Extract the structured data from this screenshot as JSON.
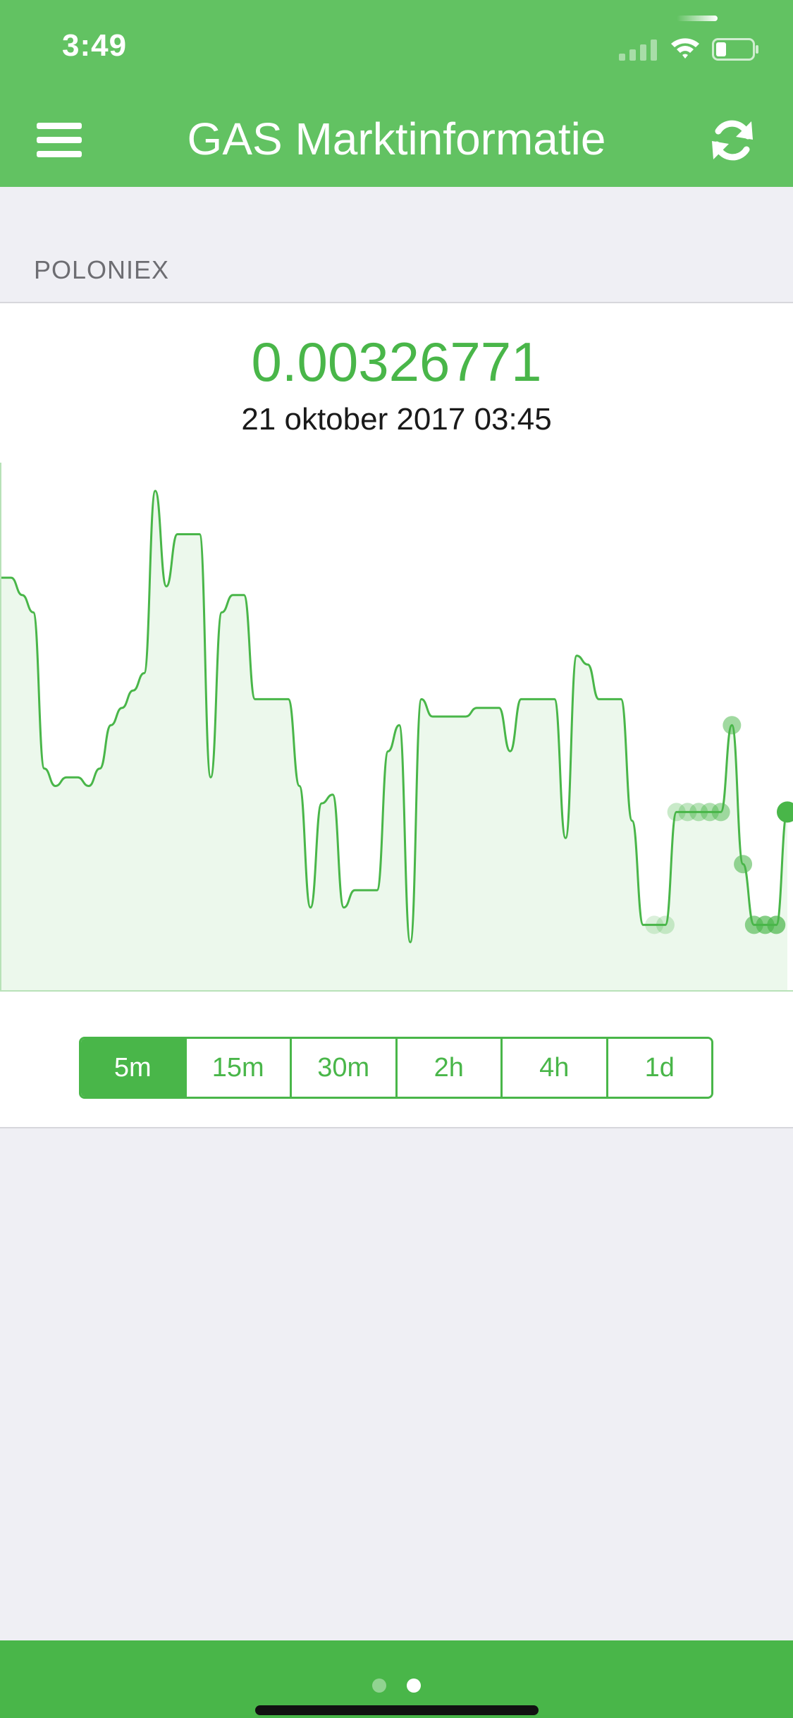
{
  "status": {
    "time": "3:49"
  },
  "nav": {
    "title": "GAS Marktinformatie",
    "menu_icon": "hamburger-menu-icon",
    "refresh_icon": "refresh-icon"
  },
  "section": {
    "label": "POLONIEX"
  },
  "price": {
    "value": "0.00326771",
    "timestamp": "21 oktober 2017 03:45"
  },
  "colors": {
    "accent": "#62c262",
    "accent_dark": "#49b649",
    "background": "#efeff4"
  },
  "chart_data": {
    "type": "area",
    "series": [
      {
        "values": [
          0.00342,
          0.00342,
          0.0034,
          0.00338,
          0.0032,
          0.00318,
          0.00319,
          0.00319,
          0.00318,
          0.0032,
          0.00325,
          0.00327,
          0.00329,
          0.00331,
          0.00352,
          0.00341,
          0.00347,
          0.00347,
          0.00347,
          0.00319,
          0.00338,
          0.0034,
          0.0034,
          0.00328,
          0.00328,
          0.00328,
          0.00328,
          0.00318,
          0.00304,
          0.00316,
          0.00317,
          0.00304,
          0.00306,
          0.00306,
          0.00306,
          0.00322,
          0.00325,
          0.003,
          0.00328,
          0.00326,
          0.00326,
          0.00326,
          0.00326,
          0.00327,
          0.00327,
          0.00327,
          0.00322,
          0.00328,
          0.00328,
          0.00328,
          0.00328,
          0.00312,
          0.00333,
          0.00332,
          0.00328,
          0.00328,
          0.00328,
          0.00314,
          0.00302,
          0.00302,
          0.00302,
          0.00315,
          0.00315,
          0.00315,
          0.00315,
          0.00315,
          0.00325,
          0.00309,
          0.00302,
          0.00302,
          0.00302,
          0.00315
        ]
      }
    ],
    "grid": false,
    "legend": "none"
  },
  "intervals": {
    "selected": "5m",
    "options": [
      "5m",
      "15m",
      "30m",
      "2h",
      "4h",
      "1d"
    ]
  },
  "pager": {
    "count": 2,
    "active": 1
  }
}
